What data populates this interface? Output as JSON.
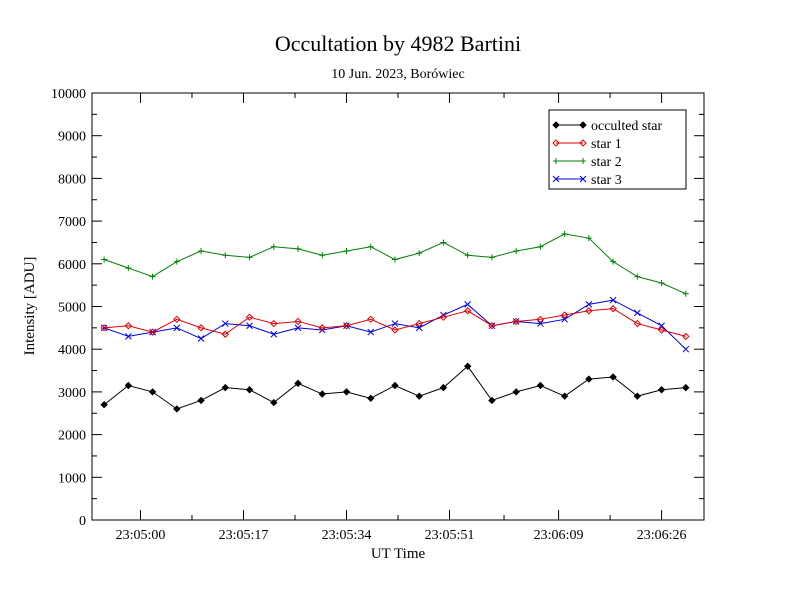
{
  "chart_data": {
    "type": "line",
    "title": "Occultation by 4982 Bartini",
    "subtitle": "10 Jun. 2023, Borówiec",
    "xlabel": "UT Time",
    "ylabel": "Intensity [ADU]",
    "xlim": [
      "23:04:52",
      "23:06:33"
    ],
    "ylim": [
      0,
      10000
    ],
    "y_ticks": [
      0,
      1000,
      2000,
      3000,
      4000,
      5000,
      6000,
      7000,
      8000,
      9000,
      10000
    ],
    "x_ticks": [
      "23:05:00",
      "23:05:17",
      "23:05:34",
      "23:05:51",
      "23:06:09",
      "23:06:26"
    ],
    "legend": "top-right",
    "grid": false,
    "x": [
      "23:04:54",
      "23:04:58",
      "23:05:02",
      "23:05:06",
      "23:05:10",
      "23:05:14",
      "23:05:18",
      "23:05:22",
      "23:05:26",
      "23:05:30",
      "23:05:34",
      "23:05:38",
      "23:05:42",
      "23:05:46",
      "23:05:50",
      "23:05:54",
      "23:05:58",
      "23:06:02",
      "23:06:06",
      "23:06:10",
      "23:06:14",
      "23:06:18",
      "23:06:22",
      "23:06:26",
      "23:06:30"
    ],
    "series": [
      {
        "name": "occulted star",
        "color": "#000000",
        "marker": "diamond-filled",
        "values": [
          2700,
          3150,
          3000,
          2600,
          2800,
          3100,
          3050,
          2750,
          3200,
          2950,
          3000,
          2850,
          3150,
          2900,
          3100,
          3600,
          2800,
          3000,
          3150,
          2900,
          3300,
          3350,
          2900,
          3050,
          3100
        ]
      },
      {
        "name": "star 1",
        "color": "#e00000",
        "marker": "diamond-open",
        "values": [
          4500,
          4550,
          4400,
          4700,
          4500,
          4350,
          4750,
          4600,
          4650,
          4500,
          4550,
          4700,
          4450,
          4600,
          4750,
          4900,
          4550,
          4650,
          4700,
          4800,
          4900,
          4950,
          4600,
          4450,
          4300
        ]
      },
      {
        "name": "star 2",
        "color": "#008000",
        "marker": "cross",
        "values": [
          6100,
          5900,
          5700,
          6050,
          6300,
          6200,
          6150,
          6400,
          6350,
          6200,
          6300,
          6400,
          6100,
          6250,
          6500,
          6200,
          6150,
          6300,
          6400,
          6700,
          6600,
          6050,
          5700,
          5550,
          5300
        ]
      },
      {
        "name": "star 3",
        "color": "#0000e0",
        "marker": "x",
        "values": [
          4500,
          4300,
          4400,
          4500,
          4250,
          4600,
          4550,
          4350,
          4500,
          4450,
          4550,
          4400,
          4600,
          4500,
          4800,
          5050,
          4550,
          4650,
          4600,
          4700,
          5050,
          5150,
          4850,
          4550,
          4000
        ]
      }
    ]
  }
}
